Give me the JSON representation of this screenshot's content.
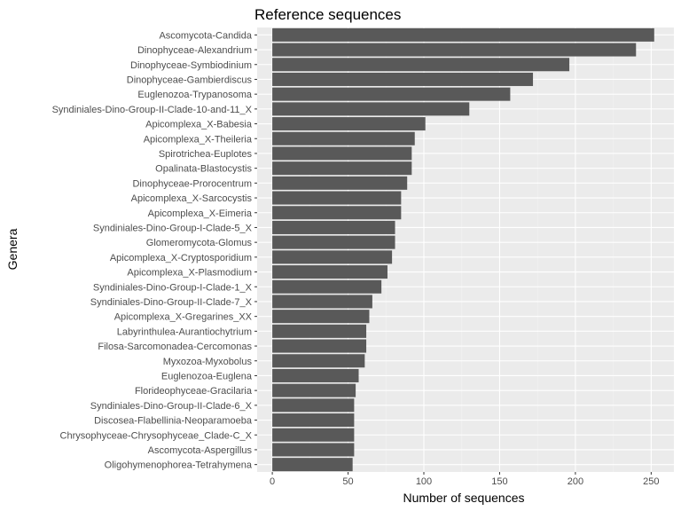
{
  "chart_data": {
    "type": "bar",
    "orientation": "horizontal",
    "title": "Reference sequences",
    "xlabel": "Number of sequences",
    "ylabel": "Genera",
    "xlim": [
      0,
      260
    ],
    "xticks": [
      0,
      50,
      100,
      150,
      200,
      250
    ],
    "grid": true,
    "categories": [
      "Ascomycota-Candida",
      "Dinophyceae-Alexandrium",
      "Dinophyceae-Symbiodinium",
      "Dinophyceae-Gambierdiscus",
      "Euglenozoa-Trypanosoma",
      "Syndiniales-Dino-Group-II-Clade-10-and-11_X",
      "Apicomplexa_X-Babesia",
      "Apicomplexa_X-Theileria",
      "Spirotrichea-Euplotes",
      "Opalinata-Blastocystis",
      "Dinophyceae-Prorocentrum",
      "Apicomplexa_X-Sarcocystis",
      "Apicomplexa_X-Eimeria",
      "Syndiniales-Dino-Group-I-Clade-5_X",
      "Glomeromycota-Glomus",
      "Apicomplexa_X-Cryptosporidium",
      "Apicomplexa_X-Plasmodium",
      "Syndiniales-Dino-Group-I-Clade-1_X",
      "Syndiniales-Dino-Group-II-Clade-7_X",
      "Apicomplexa_X-Gregarines_XX",
      "Labyrinthulea-Aurantiochytrium",
      "Filosa-Sarcomonadea-Cercomonas",
      "Myxozoa-Myxobolus",
      "Euglenozoa-Euglena",
      "Florideophyceae-Gracilaria",
      "Syndiniales-Dino-Group-II-Clade-6_X",
      "Discosea-Flabellinia-Neoparamoeba",
      "Chrysophyceae-Chrysophyceae_Clade-C_X",
      "Ascomycota-Aspergillus",
      "Oligohymenophorea-Tetrahymena"
    ],
    "values": [
      252,
      240,
      196,
      172,
      157,
      130,
      101,
      94,
      92,
      92,
      89,
      85,
      85,
      81,
      81,
      79,
      76,
      72,
      66,
      64,
      62,
      62,
      61,
      57,
      55,
      54,
      54,
      54,
      54,
      53
    ],
    "colors": {
      "bar": "#595959",
      "panel": "#ebebeb",
      "grid_major": "#ffffff",
      "grid_minor": "#f2f2f2",
      "tick_text": "#4d4d4d",
      "tick_mark": "#333333"
    }
  }
}
